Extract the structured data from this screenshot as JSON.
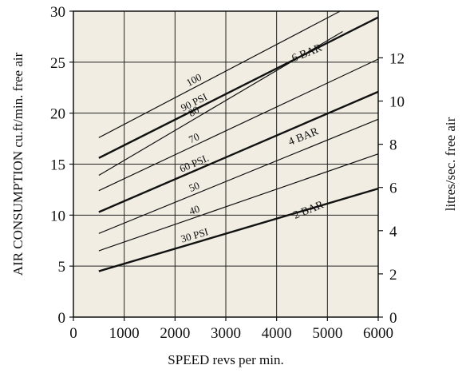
{
  "chart_data": {
    "type": "line",
    "title": "",
    "xlabel": "SPEED revs per min.",
    "ylabel": "AIR CONSUMPTION cu.ft/min. free air",
    "ylabel_right": "litres/sec. free air",
    "xlim": [
      0,
      6000
    ],
    "ylim": [
      0,
      30
    ],
    "ylim_right": [
      0,
      14.16
    ],
    "x_ticks": [
      "0",
      "1000",
      "2000",
      "3000",
      "4000",
      "5000",
      "6000"
    ],
    "y_ticks": [
      "0",
      "5",
      "10",
      "15",
      "20",
      "25",
      "30"
    ],
    "y_ticks_right": [
      "0",
      "2",
      "4",
      "6",
      "8",
      "10",
      "12"
    ],
    "grid": true,
    "background": "#f1ede3",
    "series": [
      {
        "name": "30 PSI",
        "bold": true,
        "x": [
          500,
          6000
        ],
        "y": [
          4.5,
          12.6
        ]
      },
      {
        "name": "40",
        "bold": false,
        "x": [
          500,
          6000
        ],
        "y": [
          6.5,
          16.0
        ]
      },
      {
        "name": "50",
        "bold": false,
        "x": [
          500,
          6000
        ],
        "y": [
          8.2,
          19.4
        ]
      },
      {
        "name": "60 PSI.",
        "bold": true,
        "x": [
          500,
          6000
        ],
        "y": [
          10.3,
          22.1
        ]
      },
      {
        "name": "70",
        "bold": false,
        "x": [
          500,
          6000
        ],
        "y": [
          12.4,
          25.3
        ]
      },
      {
        "name": "80",
        "bold": false,
        "x": [
          500,
          5300
        ],
        "y": [
          13.9,
          28.0
        ]
      },
      {
        "name": "90 PSI",
        "bold": true,
        "x": [
          500,
          6000
        ],
        "y": [
          15.6,
          29.4
        ]
      },
      {
        "name": "100",
        "bold": false,
        "x": [
          500,
          5250
        ],
        "y": [
          17.6,
          30.0
        ]
      }
    ],
    "annotations": [
      {
        "text": "2 BAR",
        "x": 4650,
        "y": 10.2,
        "angle": -22
      },
      {
        "text": "4 BAR",
        "x": 4550,
        "y": 17.4,
        "angle": -22
      },
      {
        "text": "6 BAR",
        "x": 4620,
        "y": 25.6,
        "angle": -22
      }
    ]
  }
}
